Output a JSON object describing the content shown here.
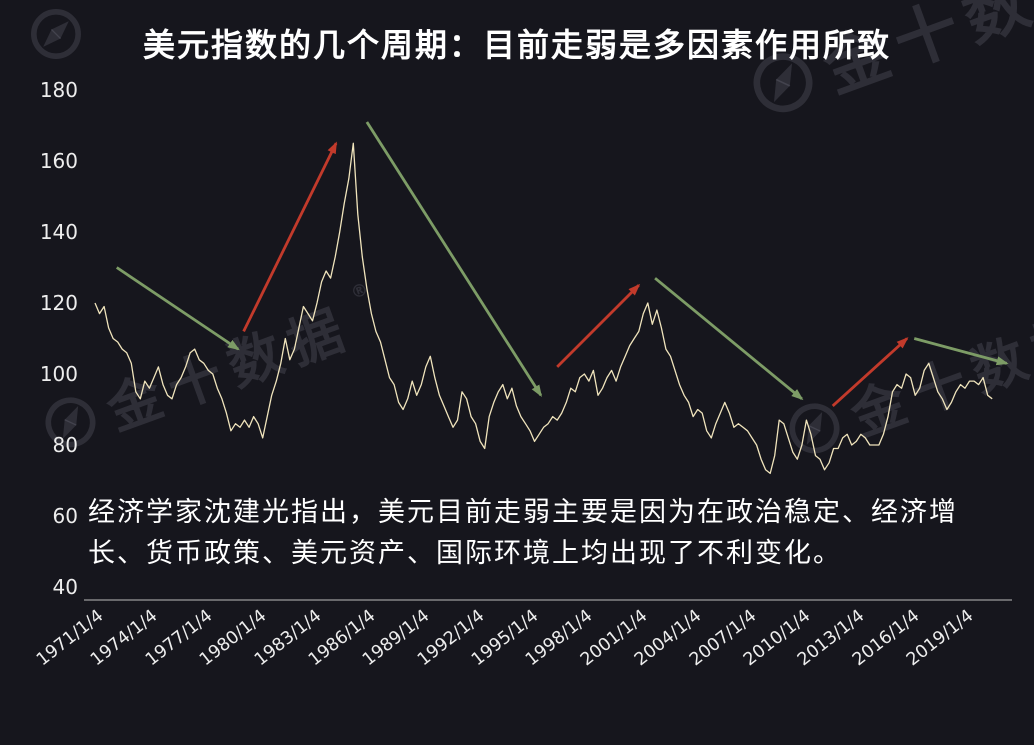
{
  "title": "美元指数的几个周期：目前走弱是多因素作用所致",
  "note": "经济学家沈建光指出，美元目前走弱主要是因为在政治稳定、经济增长、货币政策、美元资产、国际环境上均出现了不利变化。",
  "watermark": {
    "text": "金十数据",
    "reg": "®"
  },
  "colors": {
    "background": "#16161d",
    "line": "#f0e4bc",
    "up_arrow": "#c23a2b",
    "down_arrow": "#7d9c66",
    "text": "#ffffff",
    "axis": "#bcbcbc",
    "watermark": "rgba(190,196,214,0.145)"
  },
  "chart_data": {
    "type": "line",
    "title": "美元指数的几个周期：目前走弱是多因素作用所致",
    "series_name": "美元指数",
    "xlabel": "",
    "ylabel": "",
    "grid": false,
    "legend": "none",
    "ylim": [
      40,
      180
    ],
    "y_ticks": [
      180,
      160,
      140,
      120,
      100,
      80,
      60,
      40
    ],
    "x_ticks": [
      {
        "year": 1971,
        "label": "1971/1/4"
      },
      {
        "year": 1974,
        "label": "1974/1/4"
      },
      {
        "year": 1977,
        "label": "1977/1/4"
      },
      {
        "year": 1980,
        "label": "1980/1/4"
      },
      {
        "year": 1983,
        "label": "1983/1/4"
      },
      {
        "year": 1986,
        "label": "1986/1/4"
      },
      {
        "year": 1989,
        "label": "1989/1/4"
      },
      {
        "year": 1992,
        "label": "1992/1/4"
      },
      {
        "year": 1995,
        "label": "1995/1/4"
      },
      {
        "year": 1998,
        "label": "1998/1/4"
      },
      {
        "year": 2001,
        "label": "2001/1/4"
      },
      {
        "year": 2004,
        "label": "2004/1/4"
      },
      {
        "year": 2007,
        "label": "2007/1/4"
      },
      {
        "year": 2010,
        "label": "2010/1/4"
      },
      {
        "year": 2013,
        "label": "2013/1/4"
      },
      {
        "year": 2016,
        "label": "2016/1/4"
      },
      {
        "year": 2019,
        "label": "2019/1/4"
      }
    ],
    "x_start_year": 1971,
    "x_step_years": 0.25,
    "values": [
      120,
      117,
      119,
      113,
      110,
      109,
      107,
      106,
      103,
      95,
      93,
      98,
      96,
      99,
      102,
      97,
      94,
      93,
      97,
      99,
      102,
      106,
      107,
      104,
      103,
      101,
      100,
      96,
      93,
      89,
      84,
      86,
      85,
      87,
      85,
      88,
      86,
      82,
      88,
      94,
      98,
      103,
      110,
      104,
      107,
      113,
      119,
      117,
      115,
      120,
      126,
      129,
      127,
      133,
      140,
      148,
      155,
      165,
      145,
      133,
      124,
      117,
      112,
      109,
      104,
      99,
      97,
      92,
      90,
      93,
      98,
      94,
      97,
      102,
      105,
      99,
      94,
      91,
      88,
      85,
      87,
      95,
      93,
      88,
      86,
      81,
      79,
      88,
      92,
      95,
      97,
      93,
      96,
      91,
      88,
      86,
      84,
      81,
      83,
      85,
      86,
      88,
      87,
      89,
      92,
      96,
      95,
      99,
      100,
      98,
      101,
      94,
      96,
      99,
      101,
      98,
      102,
      105,
      108,
      110,
      112,
      117,
      120,
      114,
      118,
      113,
      107,
      105,
      101,
      97,
      94,
      92,
      88,
      90,
      89,
      84,
      82,
      86,
      89,
      92,
      89,
      85,
      86,
      85,
      84,
      82,
      80,
      76,
      73,
      72,
      77,
      87,
      86,
      82,
      78,
      76,
      80,
      87,
      83,
      77,
      76,
      73,
      75,
      79,
      79,
      82,
      83,
      80,
      81,
      83,
      82,
      80,
      80,
      80,
      83,
      88,
      95,
      97,
      96,
      100,
      99,
      94,
      96,
      101,
      103,
      99,
      95,
      93,
      90,
      92,
      95,
      97,
      96,
      98,
      98,
      97,
      99,
      94,
      93
    ],
    "annotations": [
      {
        "type": "arrow",
        "trend": "down",
        "from": [
          1972.2,
          130
        ],
        "to": [
          1978.9,
          107
        ]
      },
      {
        "type": "arrow",
        "trend": "up",
        "from": [
          1979.2,
          112
        ],
        "to": [
          1984.3,
          165
        ]
      },
      {
        "type": "arrow",
        "trend": "down",
        "from": [
          1986.0,
          171
        ],
        "to": [
          1995.6,
          94
        ]
      },
      {
        "type": "arrow",
        "trend": "up",
        "from": [
          1996.5,
          102
        ],
        "to": [
          2001.0,
          125
        ]
      },
      {
        "type": "arrow",
        "trend": "down",
        "from": [
          2001.9,
          127
        ],
        "to": [
          2010.0,
          93
        ]
      },
      {
        "type": "arrow",
        "trend": "up",
        "from": [
          2011.7,
          91
        ],
        "to": [
          2015.8,
          110
        ]
      },
      {
        "type": "arrow",
        "trend": "down",
        "from": [
          2016.2,
          110
        ],
        "to": [
          2021.3,
          103
        ]
      }
    ]
  }
}
